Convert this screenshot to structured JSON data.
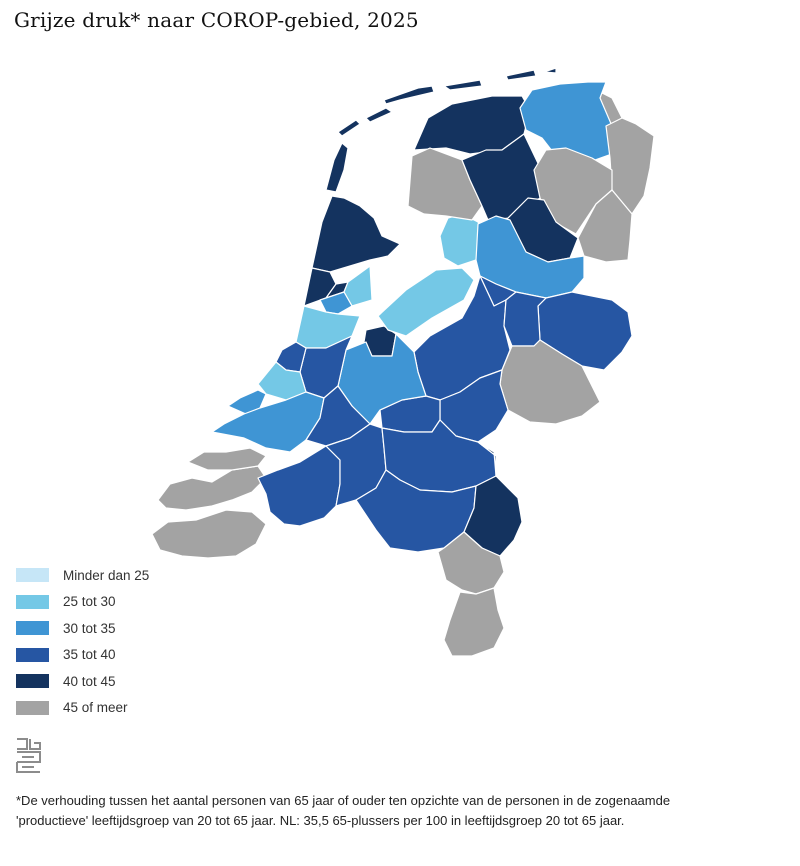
{
  "title": "Grijze druk* naar COROP-gebied, 2025",
  "colors": {
    "lt25": "#c6e6f7",
    "r25_30": "#74c8e6",
    "r30_35": "#3f95d4",
    "r35_40": "#2656a3",
    "r40_45": "#14335f",
    "ge45": "#a3a3a3",
    "water": "#ffffff",
    "border": "#ffffff"
  },
  "legend": {
    "items": [
      {
        "label": "Minder dan 25",
        "color": "#c6e6f7"
      },
      {
        "label": "25 tot 30",
        "color": "#74c8e6"
      },
      {
        "label": "30 tot 35",
        "color": "#3f95d4"
      },
      {
        "label": "35 tot 40",
        "color": "#2656a3"
      },
      {
        "label": "40 tot 45",
        "color": "#14335f"
      },
      {
        "label": "45 of meer",
        "color": "#a3a3a3"
      }
    ]
  },
  "logo": {
    "icon": "cbs-logo-icon"
  },
  "footnote": "*De verhouding tussen het aantal personen van 65 jaar of ouder ten opzichte van de personen in de zogenaamde 'productieve' leeftijdsgroep van 20 tot 65 jaar. NL: 35,5 65-plussers per 100 in leeftijdsgroep 20 tot 65 jaar."
}
